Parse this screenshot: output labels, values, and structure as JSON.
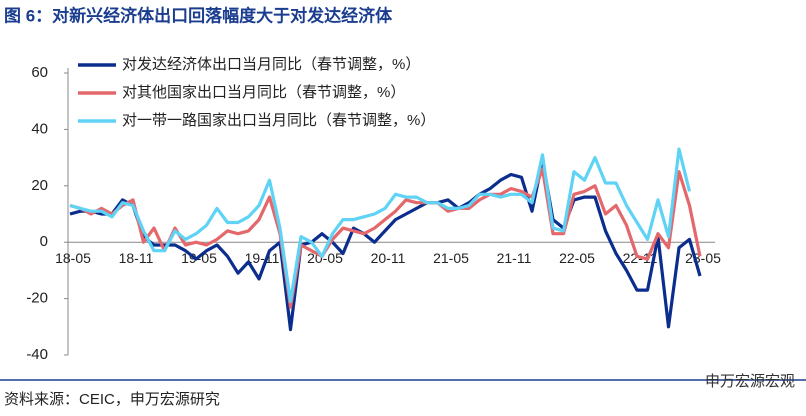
{
  "chart_data": {
    "type": "line",
    "title": "图 6：对新兴经济体出口回落幅度大于对发达经济体",
    "source": "资料来源：CEIC，申万宏源研究",
    "watermark": "申万宏源宏观",
    "categories": [
      "18-05",
      null,
      null,
      null,
      null,
      null,
      "18-11",
      null,
      null,
      null,
      null,
      null,
      "19-05",
      null,
      null,
      null,
      null,
      null,
      "19-11",
      null,
      null,
      null,
      null,
      null,
      "20-05",
      null,
      null,
      null,
      null,
      null,
      "20-11",
      null,
      null,
      null,
      null,
      null,
      "21-05",
      null,
      null,
      null,
      null,
      null,
      "21-11",
      null,
      null,
      null,
      null,
      null,
      "22-05",
      null,
      null,
      null,
      null,
      null,
      "22-11",
      null,
      null,
      null,
      null,
      null,
      "23-05"
    ],
    "ylim": [
      -40,
      60
    ],
    "yticks": [
      -40,
      -20,
      0,
      20,
      40,
      60
    ],
    "legend": "upper-left",
    "series": [
      {
        "name": "对发达经济体出口当月同比（春节调整，%）",
        "color": "#0b2d8e",
        "values": [
          10,
          11,
          11,
          10,
          10,
          15,
          13,
          2,
          -1,
          -1,
          -1,
          -3,
          -6,
          -3,
          -1,
          -5,
          -11,
          -7,
          -13,
          -3,
          0,
          -31,
          -1,
          0,
          3,
          0,
          -4,
          5,
          3,
          0,
          4,
          8,
          10,
          12,
          14,
          14,
          15,
          12,
          14,
          17,
          19,
          22,
          24,
          23,
          11,
          29,
          8,
          5,
          15,
          16,
          16,
          4,
          -4,
          -10,
          -17,
          -17,
          2,
          -30,
          -2,
          1,
          -12
        ]
      },
      {
        "name": "对其他国家出口当月同比（春节调整，%）",
        "color": "#e4686b",
        "values": [
          13,
          12,
          10,
          12,
          10,
          13,
          15,
          0,
          5,
          -3,
          5,
          -1,
          0,
          -1,
          1,
          4,
          3,
          4,
          8,
          16,
          3,
          -23,
          -1,
          -3,
          -5,
          1,
          5,
          4,
          3,
          5,
          8,
          11,
          15,
          14,
          14,
          14,
          11,
          12,
          12,
          15,
          17,
          17,
          19,
          18,
          16,
          26,
          3,
          3,
          17,
          18,
          20,
          10,
          13,
          6,
          -5,
          -6,
          3,
          -2,
          25,
          13,
          -5
        ]
      },
      {
        "name": "对一带一路国家出口当月同比（春节调整，%）",
        "color": "#5fd3f5",
        "values": [
          13,
          12,
          11,
          11,
          9,
          14,
          13,
          4,
          -3,
          -3,
          4,
          1,
          3,
          6,
          12,
          7,
          7,
          9,
          13,
          22,
          5,
          -21,
          2,
          0,
          -5,
          3,
          8,
          8,
          9,
          10,
          12,
          17,
          16,
          16,
          14,
          14,
          12,
          12,
          13,
          17,
          17,
          16,
          17,
          17,
          14,
          31,
          5,
          4,
          25,
          22,
          30,
          21,
          21,
          13,
          7,
          1,
          15,
          2,
          33,
          18,
          null
        ]
      }
    ]
  }
}
